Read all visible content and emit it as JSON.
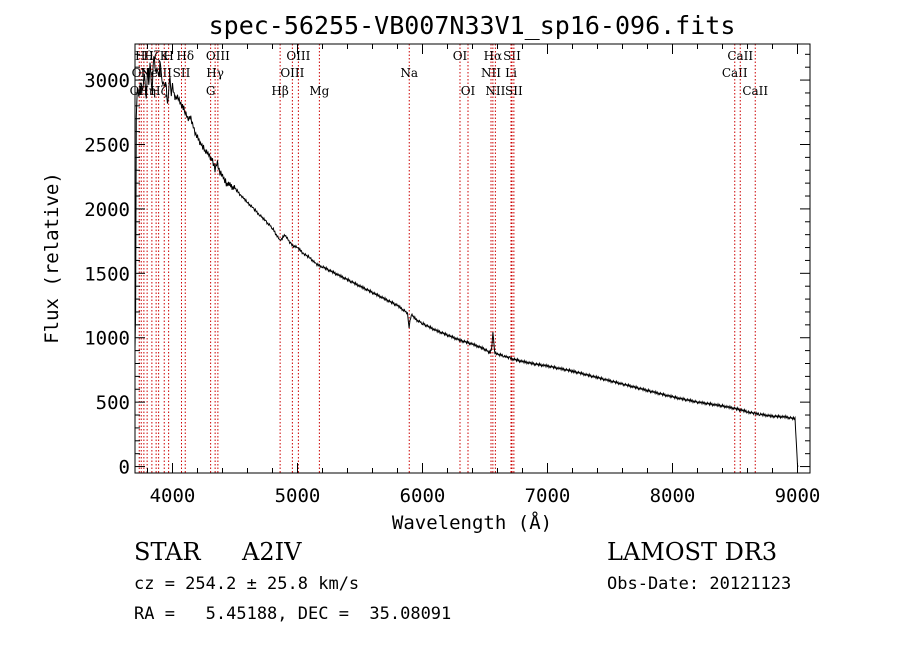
{
  "chart_data": {
    "type": "line",
    "title": "spec-56255-VB007N33V1_sp16-096.fits",
    "xlabel": "Wavelength (Å)",
    "ylabel": "Flux (relative)",
    "xlim": [
      3700,
      9100
    ],
    "ylim": [
      -50,
      3280
    ],
    "xticks": [
      4000,
      5000,
      6000,
      7000,
      8000,
      9000
    ],
    "yticks": [
      0,
      500,
      1000,
      1500,
      2000,
      2500,
      3000
    ],
    "grid": false,
    "series": [
      {
        "name": "flux",
        "x": [
          3700,
          3705,
          3710,
          3718,
          3730,
          3745,
          3760,
          3775,
          3790,
          3800,
          3810,
          3820,
          3835,
          3850,
          3865,
          3880,
          3890,
          3900,
          3910,
          3920,
          3933,
          3945,
          3960,
          3970,
          3980,
          3990,
          4000,
          4020,
          4040,
          4060,
          4080,
          4101,
          4120,
          4140,
          4160,
          4180,
          4200,
          4230,
          4260,
          4290,
          4320,
          4340,
          4360,
          4380,
          4400,
          4430,
          4460,
          4500,
          4550,
          4600,
          4650,
          4700,
          4750,
          4800,
          4861,
          4900,
          4950,
          5000,
          5050,
          5100,
          5150,
          5200,
          5300,
          5400,
          5500,
          5600,
          5700,
          5800,
          5880,
          5893,
          5900,
          5910,
          5950,
          6000,
          6100,
          6200,
          6300,
          6400,
          6500,
          6540,
          6555,
          6563,
          6570,
          6580,
          6600,
          6650,
          6700,
          6800,
          6900,
          7000,
          7200,
          7400,
          7600,
          7800,
          8000,
          8200,
          8400,
          8500,
          8542,
          8600,
          8662,
          8700,
          8800,
          8900,
          8980,
          8990,
          9000,
          9005
        ],
        "y": [
          900,
          1200,
          2700,
          2950,
          2850,
          3000,
          2900,
          3050,
          2850,
          3100,
          2950,
          3150,
          2900,
          3200,
          3050,
          3100,
          3000,
          3150,
          3050,
          2980,
          2950,
          3000,
          2800,
          2950,
          3000,
          2900,
          2950,
          2850,
          2880,
          2820,
          2800,
          2750,
          2700,
          2720,
          2650,
          2600,
          2550,
          2500,
          2450,
          2420,
          2380,
          2300,
          2360,
          2280,
          2250,
          2200,
          2180,
          2160,
          2100,
          2050,
          2000,
          1950,
          1900,
          1850,
          1750,
          1800,
          1720,
          1700,
          1650,
          1620,
          1570,
          1550,
          1500,
          1450,
          1400,
          1350,
          1300,
          1250,
          1190,
          1080,
          1130,
          1180,
          1140,
          1110,
          1060,
          1020,
          980,
          950,
          910,
          880,
          930,
          1050,
          960,
          880,
          870,
          860,
          840,
          815,
          795,
          780,
          740,
          690,
          640,
          590,
          540,
          500,
          470,
          450,
          440,
          425,
          410,
          405,
          390,
          385,
          370,
          200,
          0,
          0
        ]
      }
    ],
    "lines": [
      {
        "x": 3734,
        "label": "OII",
        "row": 3
      },
      {
        "x": 3750,
        "label": "OII",
        "row": 2
      },
      {
        "x": 3771,
        "label": "Hθ",
        "row": 1
      },
      {
        "x": 3797,
        "label": "Hη",
        "row": 3
      },
      {
        "x": 3835,
        "label": "Hζ",
        "row": 1
      },
      {
        "x": 3869,
        "label": "NeIII",
        "row": 2
      },
      {
        "x": 3889,
        "label": "Hζ",
        "row": 3
      },
      {
        "x": 3934,
        "label": "K",
        "row": 1
      },
      {
        "x": 3969,
        "label": "H",
        "row": 1
      },
      {
        "x": 4072,
        "label": "SII",
        "row": 2
      },
      {
        "x": 4102,
        "label": "Hδ",
        "row": 1
      },
      {
        "x": 4305,
        "label": "G",
        "row": 3
      },
      {
        "x": 4341,
        "label": "Hγ",
        "row": 2
      },
      {
        "x": 4363,
        "label": "OIII",
        "row": 1
      },
      {
        "x": 4861,
        "label": "Hβ",
        "row": 3
      },
      {
        "x": 4959,
        "label": "OIII",
        "row": 2
      },
      {
        "x": 5007,
        "label": "OIII",
        "row": 1
      },
      {
        "x": 5175,
        "label": "Mg",
        "row": 3
      },
      {
        "x": 5894,
        "label": "Na",
        "row": 2
      },
      {
        "x": 6300,
        "label": "OI",
        "row": 1
      },
      {
        "x": 6364,
        "label": "OI",
        "row": 3
      },
      {
        "x": 6548,
        "label": "NII",
        "row": 2
      },
      {
        "x": 6563,
        "label": "Hα",
        "row": 1
      },
      {
        "x": 6583,
        "label": "NII",
        "row": 3
      },
      {
        "x": 6708,
        "label": "Li",
        "row": 2
      },
      {
        "x": 6716,
        "label": "SII",
        "row": 1
      },
      {
        "x": 6731,
        "label": "SII",
        "row": 3
      },
      {
        "x": 8498,
        "label": "CaII",
        "row": 2
      },
      {
        "x": 8542,
        "label": "CaII",
        "row": 1
      },
      {
        "x": 8662,
        "label": "CaII",
        "row": 3
      }
    ]
  },
  "info": {
    "class_label": "STAR",
    "subclass": "A2IV",
    "survey": "LAMOST DR3",
    "cz": "cz = 254.2 ± 25.8 km/s",
    "obs_date": "Obs-Date: 20121123",
    "coords": "RA =   5.45188, DEC =  35.08091"
  },
  "colors": {
    "spectrum": "#000000",
    "line_marker": "#cc0000",
    "axis": "#000000"
  }
}
